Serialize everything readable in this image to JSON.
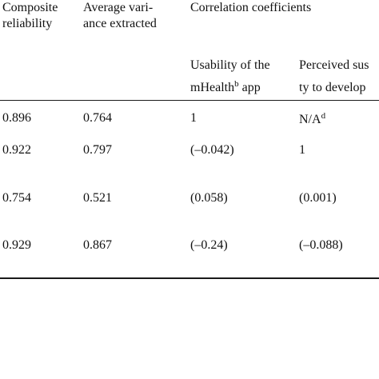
{
  "header": {
    "col1_line1": "Composite",
    "col1_line2": "reliability",
    "col2_line1": "Average vari-",
    "col2_line2": "ance extracted",
    "col3_group": "Correlation coefficients",
    "sub1_line1": "Usability of the",
    "sub1_line2_pre": "mHealth",
    "sub1_line2_sup": "b",
    "sub1_line2_post": " app",
    "sub2_line1": "Perceived sus",
    "sub2_line2": "ty to develop"
  },
  "rows": [
    {
      "cr": "0.896",
      "ave": "0.764",
      "c1": "1",
      "c2": "N/A",
      "c2_sup": "d"
    },
    {
      "cr": "0.922",
      "ave": "0.797",
      "c1": "(–0.042)",
      "c2": "1"
    },
    {
      "cr": "0.754",
      "ave": "0.521",
      "c1": "(0.058)",
      "c2": "(0.001)"
    },
    {
      "cr": "0.929",
      "ave": "0.867",
      "c1": "(–0.24)",
      "c2": "(–0.088)"
    }
  ]
}
